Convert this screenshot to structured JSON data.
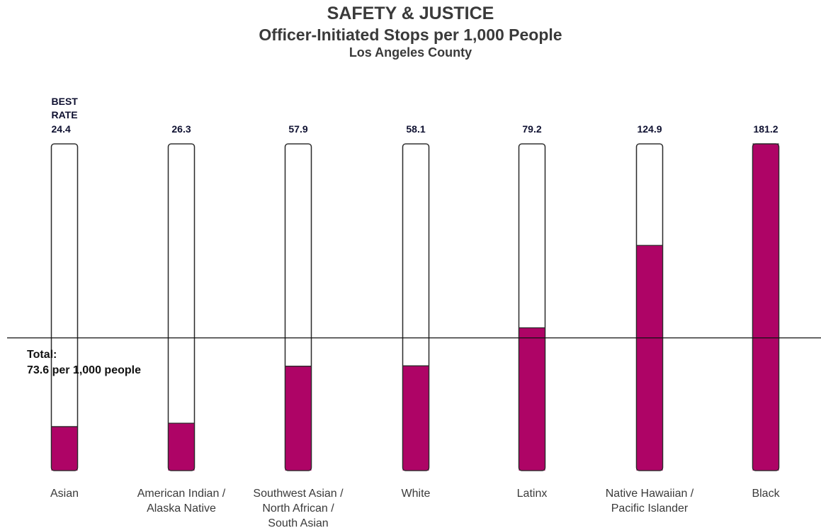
{
  "chart_data": {
    "type": "bar",
    "title": "SAFETY & JUSTICE",
    "subtitle": "Officer-Initiated Stops per 1,000 People",
    "subtitle2": "Los Angeles County",
    "categories": [
      [
        "Asian"
      ],
      [
        "American Indian /",
        "Alaska Native"
      ],
      [
        "Southwest Asian /",
        "North African /",
        "South Asian"
      ],
      [
        "White"
      ],
      [
        "Latinx"
      ],
      [
        "Native Hawaiian /",
        "Pacific Islander"
      ],
      [
        "Black"
      ]
    ],
    "values": [
      24.4,
      26.3,
      57.9,
      58.1,
      79.2,
      124.9,
      181.2
    ],
    "value_labels": [
      "24.4",
      "26.3",
      "57.9",
      "58.1",
      "79.2",
      "124.9",
      "181.2"
    ],
    "best_rate_label": [
      "BEST",
      "RATE"
    ],
    "best_index": 0,
    "ylim": [
      0,
      181.2
    ],
    "reference_line": {
      "value": 73.6,
      "label_line1": "Total:",
      "label_line2": "73.6 per 1,000 people"
    },
    "colors": {
      "bar_fill": "#ae0466",
      "bar_outline": "#2b2b2b",
      "value_label": "#0f1131"
    }
  }
}
